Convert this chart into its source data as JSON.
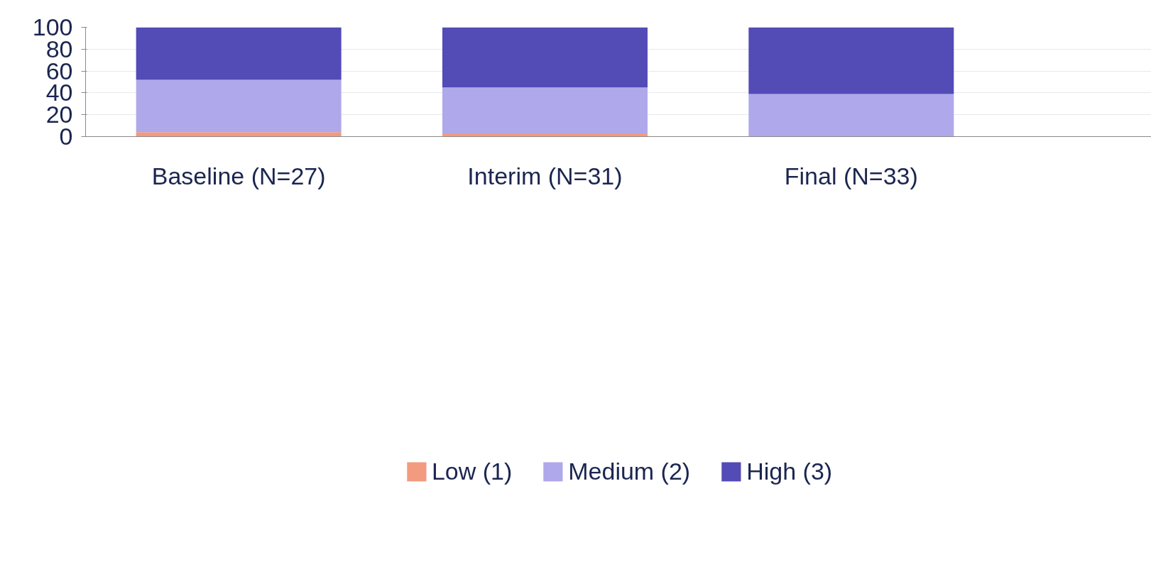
{
  "chart_data": {
    "type": "bar",
    "stacked": true,
    "categories": [
      "Baseline (N=27)",
      "Interim (N=31)",
      "Final (N=33)"
    ],
    "series": [
      {
        "name": "Low (1)",
        "color": "#f29b7e",
        "values": [
          4,
          3,
          0
        ]
      },
      {
        "name": "Medium (2)",
        "color": "#afa8ea",
        "values": [
          48,
          42,
          39
        ]
      },
      {
        "name": "High (3)",
        "color": "#534bb6",
        "values": [
          48,
          55,
          61
        ]
      }
    ],
    "ylim": [
      0,
      100
    ],
    "yticks": [
      0,
      20,
      40,
      60,
      80,
      100
    ],
    "grid": "y",
    "legend": "bottom"
  }
}
